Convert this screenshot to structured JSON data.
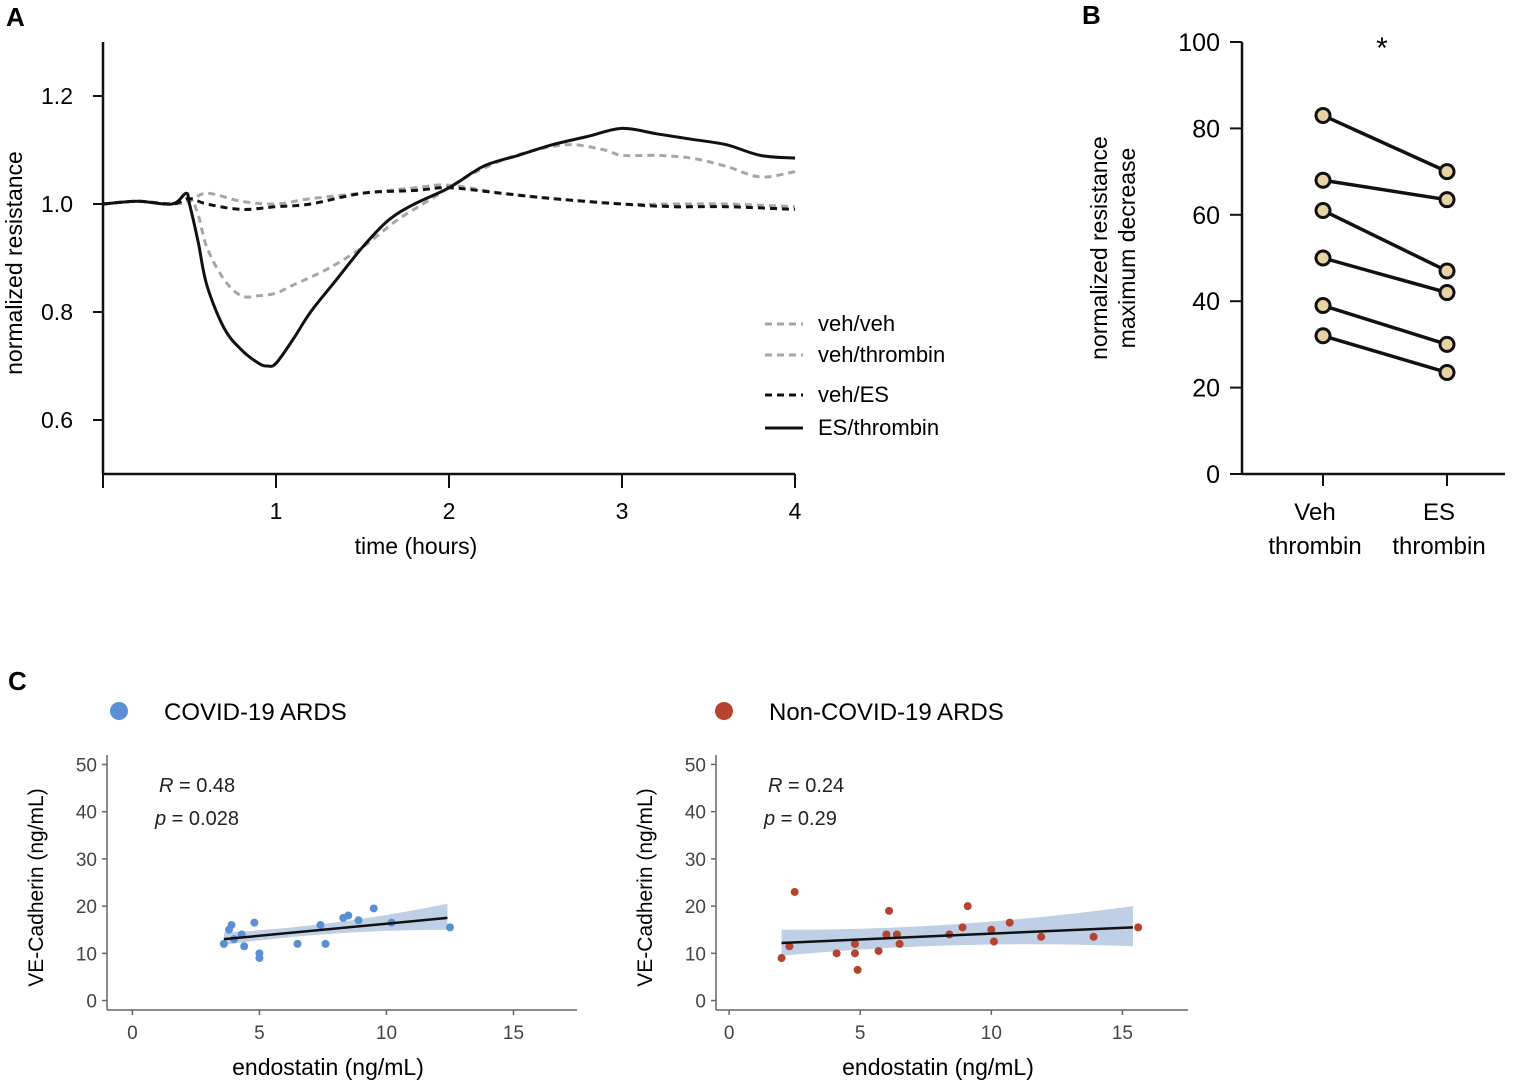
{
  "chart_data": [
    {
      "panel": "A",
      "type": "line",
      "title": "",
      "xlabel": "time (hours)",
      "ylabel": "normalized  resistance",
      "xlim": [
        0,
        4
      ],
      "ylim": [
        0.5,
        1.3
      ],
      "xticks": [
        1,
        2,
        3,
        4
      ],
      "xtick_labels": [
        "1",
        "2",
        "3",
        "4"
      ],
      "yticks": [
        0.6,
        0.8,
        1.0,
        1.2
      ],
      "ytick_labels": [
        "0.6",
        "0.8",
        "1.0",
        "1.2"
      ],
      "legend_position": "right",
      "series": [
        {
          "name": "veh/veh",
          "style": "dashed",
          "color": "#a6a6a6",
          "x": [
            0,
            0.2,
            0.4,
            0.5,
            0.6,
            0.8,
            1.0,
            1.2,
            1.5,
            1.8,
            2.0,
            2.3,
            2.6,
            3.0,
            3.3,
            3.6,
            4.0
          ],
          "y": [
            1.0,
            1.005,
            1.0,
            1.005,
            1.02,
            1.005,
            1.0,
            1.01,
            1.02,
            1.03,
            1.035,
            1.02,
            1.01,
            1.0,
            1.0,
            1.0,
            0.995
          ]
        },
        {
          "name": "veh/thrombin",
          "style": "dashed",
          "color": "#a6a6a6",
          "x": [
            0,
            0.2,
            0.4,
            0.5,
            0.55,
            0.6,
            0.7,
            0.8,
            0.9,
            1.0,
            1.1,
            1.3,
            1.5,
            1.7,
            1.9,
            2.1,
            2.3,
            2.5,
            2.7,
            2.9,
            3.0,
            3.2,
            3.4,
            3.6,
            3.8,
            4.0
          ],
          "y": [
            1.0,
            1.005,
            1.0,
            1.01,
            0.98,
            0.92,
            0.86,
            0.83,
            0.83,
            0.835,
            0.85,
            0.88,
            0.92,
            0.97,
            1.01,
            1.05,
            1.08,
            1.1,
            1.11,
            1.1,
            1.09,
            1.09,
            1.085,
            1.07,
            1.05,
            1.06
          ]
        },
        {
          "name": "veh/ES",
          "style": "dashed",
          "color": "#111111",
          "x": [
            0,
            0.2,
            0.4,
            0.5,
            0.6,
            0.8,
            1.0,
            1.2,
            1.5,
            1.8,
            2.0,
            2.3,
            2.6,
            3.0,
            3.3,
            3.6,
            4.0
          ],
          "y": [
            1.0,
            1.005,
            1.0,
            1.01,
            1.0,
            0.99,
            0.995,
            1.0,
            1.02,
            1.025,
            1.03,
            1.02,
            1.01,
            1.0,
            0.995,
            0.995,
            0.99
          ]
        },
        {
          "name": "ES/thrombin",
          "style": "solid",
          "color": "#111111",
          "x": [
            0,
            0.2,
            0.4,
            0.48,
            0.5,
            0.55,
            0.6,
            0.7,
            0.8,
            0.9,
            0.95,
            1.0,
            1.1,
            1.2,
            1.35,
            1.5,
            1.65,
            1.8,
            2.0,
            2.2,
            2.4,
            2.6,
            2.8,
            3.0,
            3.2,
            3.4,
            3.6,
            3.8,
            4.0
          ],
          "y": [
            1.0,
            1.005,
            1.0,
            1.02,
            1.0,
            0.93,
            0.85,
            0.77,
            0.73,
            0.705,
            0.7,
            0.705,
            0.75,
            0.8,
            0.86,
            0.92,
            0.97,
            1.0,
            1.03,
            1.07,
            1.09,
            1.11,
            1.125,
            1.14,
            1.13,
            1.12,
            1.11,
            1.09,
            1.085
          ]
        }
      ]
    },
    {
      "panel": "B",
      "type": "scatter",
      "title": "",
      "xlabel": "",
      "ylabel": "normalized  resistance\nmaximum decrease",
      "ylim": [
        0,
        100
      ],
      "yticks": [
        0,
        20,
        40,
        60,
        80,
        100
      ],
      "ytick_labels": [
        "0",
        "20",
        "40",
        "60",
        "80",
        "100"
      ],
      "categories": [
        "Veh\nthrombin",
        "ES\nthrombin"
      ],
      "pairs": [
        [
          83,
          70
        ],
        [
          68,
          63.5
        ],
        [
          61,
          47
        ],
        [
          50,
          42
        ],
        [
          39,
          30
        ],
        [
          32,
          23.5
        ]
      ],
      "annotation": "*"
    },
    {
      "panel": "C-left",
      "type": "scatter",
      "title": "",
      "legend_label": "COVID-19 ARDS",
      "color": "#5b8fd4",
      "xlabel": "endostatin   (ng/mL)",
      "ylabel": "VE-Cadherin (ng/mL)",
      "xlim": [
        -1,
        17.5
      ],
      "ylim": [
        -2,
        52
      ],
      "xticks": [
        0,
        5,
        10,
        15
      ],
      "xtick_labels": [
        "0",
        "5",
        "10",
        "15"
      ],
      "yticks": [
        0,
        10,
        20,
        30,
        40,
        50
      ],
      "ytick_labels": [
        "0",
        "10",
        "20",
        "30",
        "40",
        "50"
      ],
      "stat_r_symbol": "R",
      "stat_r_value": " = 0.48",
      "stat_p_symbol": "p",
      "stat_p_value": " = 0.028",
      "points": [
        [
          3.6,
          12
        ],
        [
          3.8,
          15
        ],
        [
          3.9,
          16
        ],
        [
          4.0,
          13
        ],
        [
          4.3,
          14
        ],
        [
          4.4,
          11.5
        ],
        [
          4.8,
          16.5
        ],
        [
          5.0,
          10
        ],
        [
          5.0,
          9
        ],
        [
          6.5,
          12
        ],
        [
          7.4,
          16
        ],
        [
          7.6,
          12
        ],
        [
          8.3,
          17.5
        ],
        [
          8.5,
          18
        ],
        [
          8.9,
          17
        ],
        [
          9.5,
          19.5
        ],
        [
          10.2,
          16.5
        ],
        [
          12.5,
          15.5
        ]
      ],
      "fit": {
        "x": [
          3.6,
          12.4
        ],
        "y": [
          13,
          17.5
        ],
        "ci_low": [
          11.8,
          15.0
        ],
        "ci_high": [
          14.4,
          20.5
        ]
      }
    },
    {
      "panel": "C-right",
      "type": "scatter",
      "title": "",
      "legend_label": "Non-COVID-19 ARDS",
      "color": "#b5432f",
      "xlabel": "endostatin   (ng/mL)",
      "ylabel": "VE-Cadherin (ng/mL)",
      "xlim": [
        -0.5,
        17.5
      ],
      "ylim": [
        -2,
        52
      ],
      "xticks": [
        0,
        5,
        10,
        15
      ],
      "xtick_labels": [
        "0",
        "5",
        "10",
        "15"
      ],
      "yticks": [
        0,
        10,
        20,
        30,
        40,
        50
      ],
      "ytick_labels": [
        "0",
        "10",
        "20",
        "30",
        "40",
        "50"
      ],
      "stat_r_symbol": "R",
      "stat_r_value": " = 0.24",
      "stat_p_symbol": "p",
      "stat_p_value": " = 0.29",
      "points": [
        [
          2.0,
          9
        ],
        [
          2.3,
          11.5
        ],
        [
          2.5,
          23
        ],
        [
          4.1,
          10
        ],
        [
          4.8,
          12
        ],
        [
          4.8,
          10
        ],
        [
          4.9,
          6.5
        ],
        [
          5.7,
          10.5
        ],
        [
          6.0,
          14
        ],
        [
          6.1,
          19
        ],
        [
          6.4,
          14
        ],
        [
          6.5,
          12
        ],
        [
          8.4,
          14
        ],
        [
          8.9,
          15.5
        ],
        [
          9.1,
          20
        ],
        [
          10.0,
          15
        ],
        [
          10.1,
          12.5
        ],
        [
          10.7,
          16.5
        ],
        [
          11.9,
          13.5
        ],
        [
          13.9,
          13.5
        ],
        [
          15.6,
          15.5
        ]
      ],
      "fit": {
        "x": [
          2.0,
          15.4
        ],
        "y": [
          12.2,
          15.5
        ],
        "ci_low": [
          9.5,
          11.5
        ],
        "ci_high": [
          15.0,
          20.0
        ]
      }
    }
  ],
  "panels": {
    "A": "A",
    "B": "B",
    "C": "C"
  }
}
